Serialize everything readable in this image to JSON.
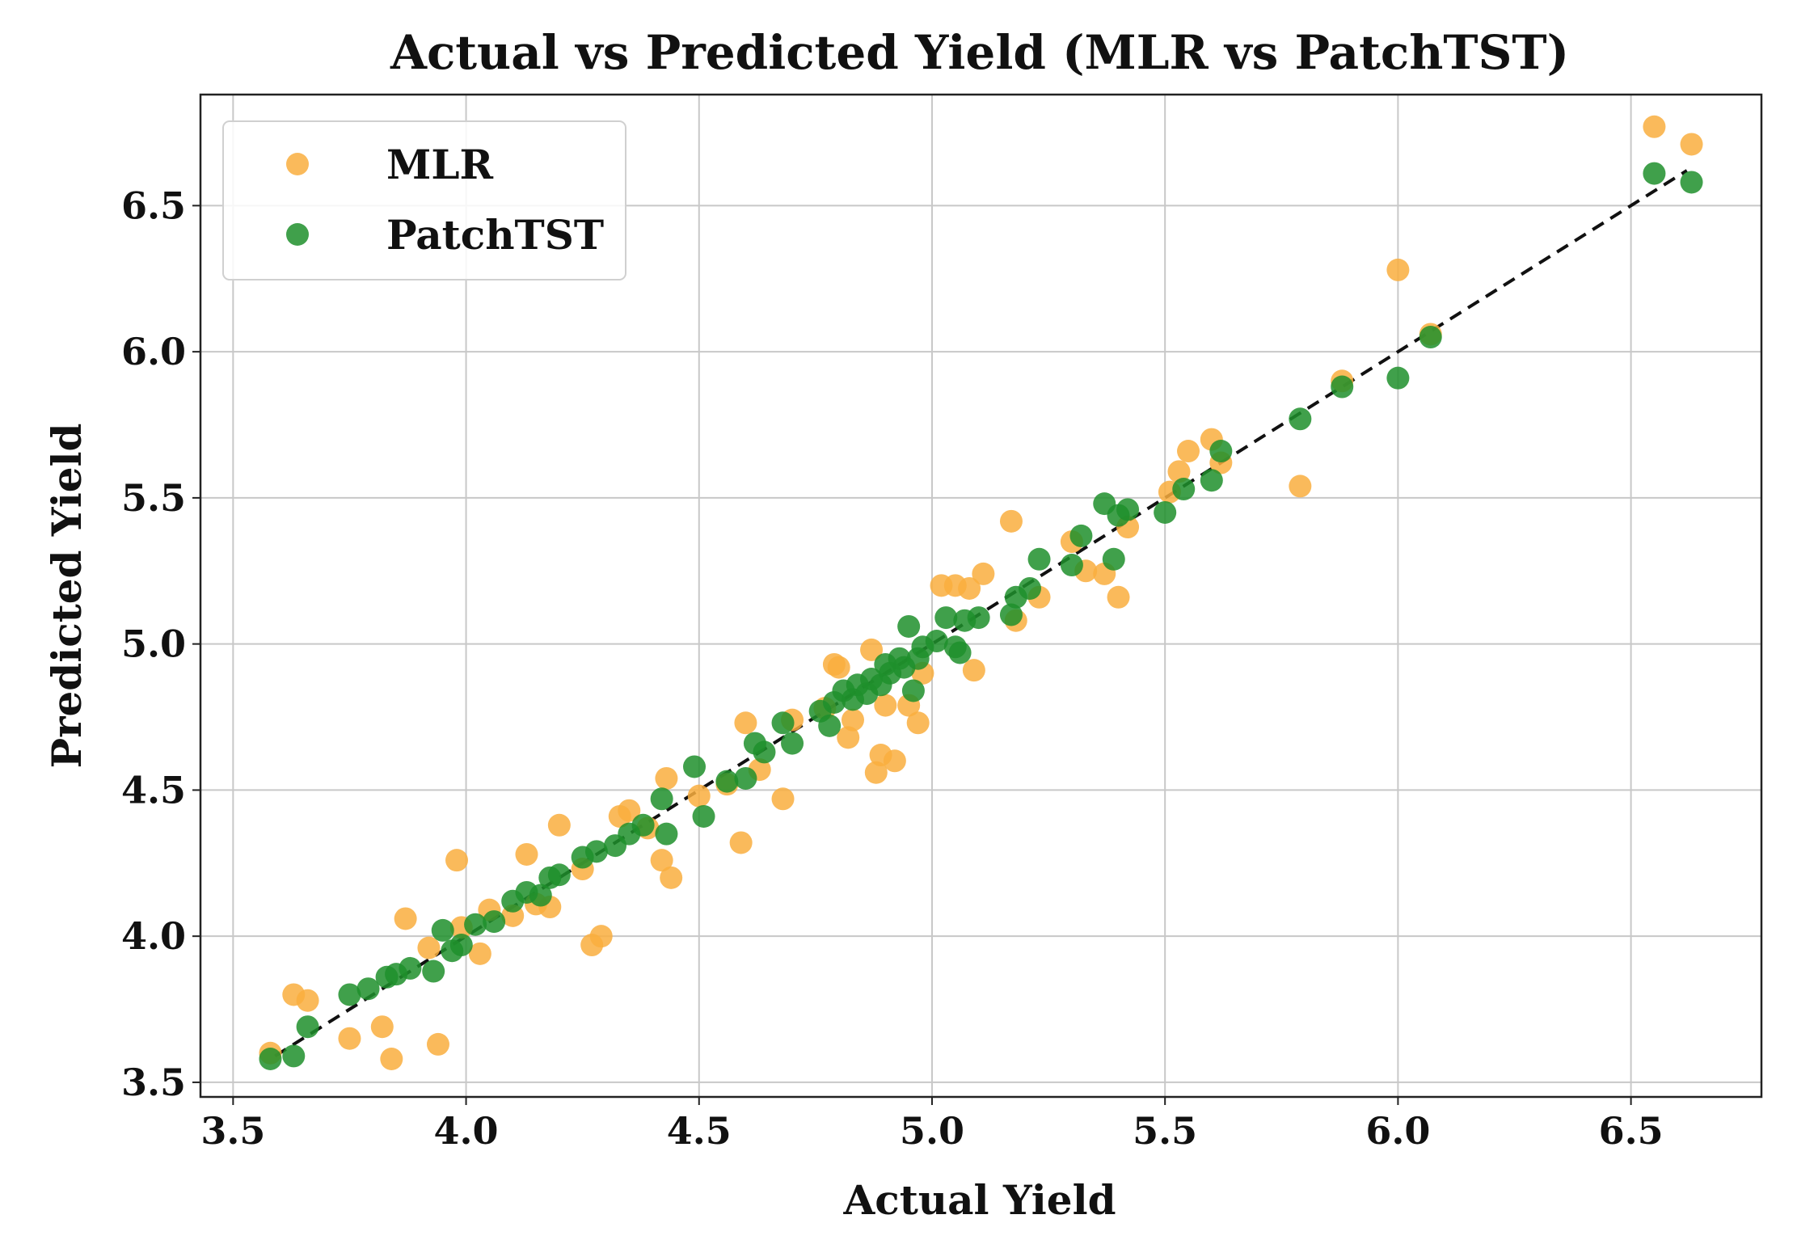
{
  "chart_data": {
    "type": "scatter",
    "title": "Actual vs Predicted Yield (MLR vs PatchTST)",
    "xlabel": "Actual Yield",
    "ylabel": "Predicted Yield",
    "xlim": [
      3.43,
      6.78
    ],
    "ylim": [
      3.45,
      6.88
    ],
    "xticks": [
      "3.5",
      "4.0",
      "4.5",
      "5.0",
      "5.5",
      "6.0",
      "6.5"
    ],
    "yticks": [
      "3.5",
      "4.0",
      "4.5",
      "5.0",
      "5.5",
      "6.0",
      "6.5"
    ],
    "grid": true,
    "legend_position": "top-left",
    "reference_line": {
      "style": "dashed",
      "color": "#111111",
      "from": [
        3.59,
        3.59
      ],
      "to": [
        6.62,
        6.62
      ]
    },
    "series": [
      {
        "name": "MLR",
        "color": "#F9AE3E",
        "points": [
          [
            3.58,
            3.6
          ],
          [
            3.63,
            3.8
          ],
          [
            3.66,
            3.78
          ],
          [
            3.75,
            3.65
          ],
          [
            3.82,
            3.69
          ],
          [
            3.84,
            3.58
          ],
          [
            3.87,
            4.06
          ],
          [
            3.94,
            3.63
          ],
          [
            3.92,
            3.96
          ],
          [
            3.98,
            4.26
          ],
          [
            3.99,
            4.03
          ],
          [
            4.03,
            3.94
          ],
          [
            4.05,
            4.09
          ],
          [
            4.1,
            4.07
          ],
          [
            4.13,
            4.28
          ],
          [
            4.15,
            4.11
          ],
          [
            4.18,
            4.1
          ],
          [
            4.2,
            4.38
          ],
          [
            4.25,
            4.23
          ],
          [
            4.27,
            3.97
          ],
          [
            4.29,
            4.0
          ],
          [
            4.33,
            4.41
          ],
          [
            4.35,
            4.43
          ],
          [
            4.39,
            4.37
          ],
          [
            4.43,
            4.54
          ],
          [
            4.42,
            4.26
          ],
          [
            4.44,
            4.2
          ],
          [
            4.5,
            4.48
          ],
          [
            4.56,
            4.52
          ],
          [
            4.59,
            4.32
          ],
          [
            4.6,
            4.73
          ],
          [
            4.63,
            4.57
          ],
          [
            4.68,
            4.47
          ],
          [
            4.7,
            4.74
          ],
          [
            4.77,
            4.78
          ],
          [
            4.79,
            4.93
          ],
          [
            4.8,
            4.92
          ],
          [
            4.82,
            4.68
          ],
          [
            4.83,
            4.74
          ],
          [
            4.87,
            4.98
          ],
          [
            4.88,
            4.56
          ],
          [
            4.89,
            4.62
          ],
          [
            4.9,
            4.79
          ],
          [
            4.92,
            4.6
          ],
          [
            4.95,
            4.79
          ],
          [
            4.97,
            4.73
          ],
          [
            4.98,
            4.9
          ],
          [
            5.02,
            5.2
          ],
          [
            5.05,
            5.2
          ],
          [
            5.08,
            5.19
          ],
          [
            5.09,
            4.91
          ],
          [
            5.11,
            5.24
          ],
          [
            5.17,
            5.42
          ],
          [
            5.18,
            5.08
          ],
          [
            5.23,
            5.16
          ],
          [
            5.3,
            5.35
          ],
          [
            5.33,
            5.25
          ],
          [
            5.37,
            5.24
          ],
          [
            5.4,
            5.16
          ],
          [
            5.42,
            5.4
          ],
          [
            5.51,
            5.52
          ],
          [
            5.53,
            5.59
          ],
          [
            5.55,
            5.66
          ],
          [
            5.6,
            5.7
          ],
          [
            5.62,
            5.62
          ],
          [
            5.79,
            5.54
          ],
          [
            5.88,
            5.9
          ],
          [
            6.0,
            6.28
          ],
          [
            6.07,
            6.06
          ],
          [
            6.55,
            6.77
          ],
          [
            6.63,
            6.71
          ]
        ]
      },
      {
        "name": "PatchTST",
        "color": "#1E8F2C",
        "points": [
          [
            3.58,
            3.58
          ],
          [
            3.63,
            3.59
          ],
          [
            3.66,
            3.69
          ],
          [
            3.75,
            3.8
          ],
          [
            3.79,
            3.82
          ],
          [
            3.83,
            3.86
          ],
          [
            3.85,
            3.87
          ],
          [
            3.88,
            3.89
          ],
          [
            3.93,
            3.88
          ],
          [
            3.95,
            4.02
          ],
          [
            3.97,
            3.95
          ],
          [
            3.99,
            3.97
          ],
          [
            4.02,
            4.04
          ],
          [
            4.06,
            4.05
          ],
          [
            4.1,
            4.12
          ],
          [
            4.13,
            4.15
          ],
          [
            4.16,
            4.14
          ],
          [
            4.18,
            4.2
          ],
          [
            4.2,
            4.21
          ],
          [
            4.25,
            4.27
          ],
          [
            4.28,
            4.29
          ],
          [
            4.32,
            4.31
          ],
          [
            4.35,
            4.35
          ],
          [
            4.38,
            4.38
          ],
          [
            4.42,
            4.47
          ],
          [
            4.43,
            4.35
          ],
          [
            4.49,
            4.58
          ],
          [
            4.51,
            4.41
          ],
          [
            4.56,
            4.53
          ],
          [
            4.6,
            4.54
          ],
          [
            4.62,
            4.66
          ],
          [
            4.64,
            4.63
          ],
          [
            4.68,
            4.73
          ],
          [
            4.7,
            4.66
          ],
          [
            4.76,
            4.77
          ],
          [
            4.78,
            4.72
          ],
          [
            4.79,
            4.8
          ],
          [
            4.81,
            4.84
          ],
          [
            4.83,
            4.81
          ],
          [
            4.84,
            4.86
          ],
          [
            4.86,
            4.83
          ],
          [
            4.87,
            4.88
          ],
          [
            4.89,
            4.86
          ],
          [
            4.9,
            4.93
          ],
          [
            4.91,
            4.9
          ],
          [
            4.93,
            4.95
          ],
          [
            4.94,
            4.92
          ],
          [
            4.95,
            5.06
          ],
          [
            4.96,
            4.84
          ],
          [
            4.97,
            4.95
          ],
          [
            4.98,
            4.99
          ],
          [
            5.01,
            5.01
          ],
          [
            5.03,
            5.09
          ],
          [
            5.05,
            4.99
          ],
          [
            5.06,
            4.97
          ],
          [
            5.07,
            5.08
          ],
          [
            5.1,
            5.09
          ],
          [
            5.17,
            5.1
          ],
          [
            5.18,
            5.16
          ],
          [
            5.21,
            5.19
          ],
          [
            5.23,
            5.29
          ],
          [
            5.3,
            5.27
          ],
          [
            5.32,
            5.37
          ],
          [
            5.37,
            5.48
          ],
          [
            5.39,
            5.29
          ],
          [
            5.4,
            5.44
          ],
          [
            5.42,
            5.46
          ],
          [
            5.5,
            5.45
          ],
          [
            5.54,
            5.53
          ],
          [
            5.6,
            5.56
          ],
          [
            5.62,
            5.66
          ],
          [
            5.79,
            5.77
          ],
          [
            5.88,
            5.88
          ],
          [
            6.0,
            5.91
          ],
          [
            6.07,
            6.05
          ],
          [
            6.55,
            6.61
          ],
          [
            6.63,
            6.58
          ]
        ]
      }
    ]
  }
}
